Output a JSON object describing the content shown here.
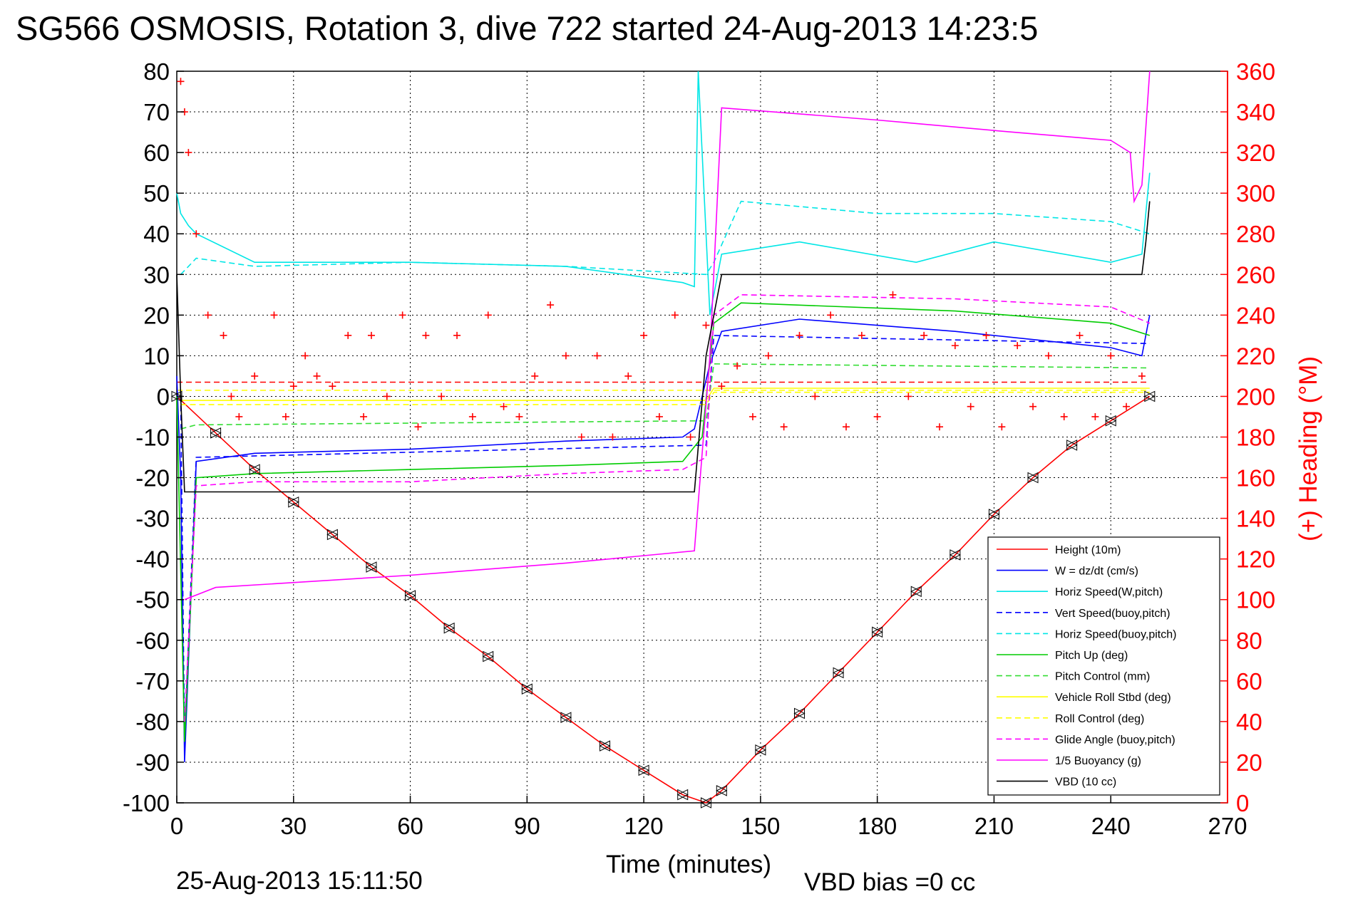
{
  "chart_data": {
    "type": "line",
    "title": "SG566 OSMOSIS, Rotation 3, dive 722 started 24-Aug-2013 14:23:5",
    "xlabel": "Time (minutes)",
    "ylabel_right": "(+) Heading (°M)",
    "footer_date": "25-Aug-2013 15:11:50",
    "footer_bias": "VBD bias =0 cc",
    "xlim": [
      0,
      270
    ],
    "ylim": [
      -100,
      80
    ],
    "ylim_right": [
      0,
      360
    ],
    "x_ticks": [
      "0",
      "30",
      "60",
      "90",
      "120",
      "150",
      "180",
      "210",
      "240",
      "270"
    ],
    "y_ticks": [
      "80",
      "70",
      "60",
      "50",
      "40",
      "30",
      "20",
      "10",
      "0",
      "-10",
      "-20",
      "-30",
      "-40",
      "-50",
      "-60",
      "-70",
      "-80",
      "-90",
      "-100"
    ],
    "y_ticks_right": [
      "360",
      "340",
      "320",
      "300",
      "280",
      "260",
      "240",
      "220",
      "200",
      "180",
      "160",
      "140",
      "120",
      "100",
      "80",
      "60",
      "40",
      "20",
      "0"
    ],
    "grid": true,
    "legend_position": "bottom-right",
    "series": [
      {
        "name": "Height (10m)",
        "color": "#ff0000",
        "style": "solid",
        "x": [
          0,
          10,
          20,
          30,
          40,
          50,
          60,
          70,
          80,
          90,
          100,
          110,
          120,
          130,
          136,
          140,
          150,
          160,
          170,
          180,
          190,
          200,
          210,
          220,
          230,
          240,
          250
        ],
        "y": [
          0,
          -9,
          -18,
          -26,
          -34,
          -42,
          -49,
          -57,
          -64,
          -72,
          -79,
          -86,
          -92,
          -98,
          -100,
          -97,
          -87,
          -78,
          -68,
          -58,
          -48,
          -39,
          -29,
          -20,
          -12,
          -6,
          0
        ]
      },
      {
        "name": "W = dz/dt (cm/s)",
        "color": "#0000ff",
        "style": "solid",
        "x": [
          0,
          1,
          2,
          5,
          20,
          60,
          100,
          130,
          133,
          137,
          140,
          160,
          200,
          240,
          248,
          250
        ],
        "y": [
          5,
          -20,
          -90,
          -16,
          -14,
          -13,
          -11,
          -10,
          -8,
          8,
          16,
          19,
          16,
          12,
          10,
          20
        ]
      },
      {
        "name": "Horiz Speed(W,pitch)",
        "color": "#00e6e6",
        "style": "solid",
        "x": [
          0,
          1,
          3,
          5,
          20,
          60,
          100,
          130,
          133,
          134,
          137,
          140,
          160,
          190,
          210,
          240,
          248,
          250
        ],
        "y": [
          50,
          45,
          42,
          40,
          33,
          33,
          32,
          28,
          27,
          80,
          20,
          35,
          38,
          33,
          38,
          33,
          35,
          55
        ]
      },
      {
        "name": "Vert Speed(buoy,pitch)",
        "color": "#0000ff",
        "style": "dashed",
        "x": [
          1,
          2,
          3,
          5,
          136,
          138,
          250
        ],
        "y": [
          0,
          -85,
          -60,
          -15,
          -12,
          15,
          13
        ]
      },
      {
        "name": "Horiz Speed(buoy,pitch)",
        "color": "#00e6e6",
        "style": "dashed",
        "x": [
          1,
          5,
          20,
          60,
          100,
          136,
          138,
          145,
          180,
          210,
          240,
          250
        ],
        "y": [
          30,
          34,
          32,
          33,
          32,
          30,
          33,
          48,
          45,
          45,
          43,
          40
        ]
      },
      {
        "name": "Pitch Up (deg)",
        "color": "#00cc00",
        "style": "solid",
        "x": [
          0,
          2,
          5,
          20,
          60,
          100,
          130,
          135,
          138,
          145,
          200,
          240,
          250
        ],
        "y": [
          0,
          -85,
          -20,
          -19,
          -18,
          -17,
          -16,
          -10,
          18,
          23,
          21,
          18,
          15
        ]
      },
      {
        "name": "Pitch Control (mm)",
        "color": "#33dd33",
        "style": "dashed",
        "x": [
          1,
          5,
          136,
          138,
          250
        ],
        "y": [
          -8,
          -7,
          -6,
          8,
          7
        ]
      },
      {
        "name": "Vehicle Roll Stbd (deg)",
        "color": "#ffff00",
        "style": "solid",
        "x": [
          1,
          10,
          60,
          120,
          136,
          138,
          200,
          250
        ],
        "y": [
          -1,
          -1,
          -1,
          -1,
          -1,
          2,
          2,
          2
        ]
      },
      {
        "name": "Roll Control (deg)",
        "color": "#ffff00",
        "style": "dashed",
        "x": [
          1,
          10,
          60,
          120,
          136,
          138,
          200,
          250
        ],
        "y": [
          -2,
          -2,
          -2,
          -2,
          -2,
          1,
          1,
          1
        ]
      },
      {
        "name": "Glide Angle (buoy,pitch)",
        "color": "#ff00ff",
        "style": "dashed",
        "x": [
          2,
          5,
          20,
          60,
          100,
          130,
          136,
          138,
          145,
          200,
          240,
          250
        ],
        "y": [
          -80,
          -22,
          -21,
          -21,
          -19,
          -18,
          -15,
          20,
          25,
          24,
          22,
          18
        ]
      },
      {
        "name": "1/5 Buoyancy (g)",
        "color": "#ff00ff",
        "style": "solid",
        "x": [
          2,
          10,
          60,
          100,
          133,
          137,
          140,
          180,
          215,
          240,
          245,
          246,
          248,
          250
        ],
        "y": [
          -50,
          -47,
          -44,
          -41,
          -38,
          10,
          71,
          68,
          65,
          63,
          60,
          48,
          52,
          80
        ]
      },
      {
        "name": "VBD (10 cc)",
        "color": "#000000",
        "style": "solid",
        "x": [
          0,
          1,
          2,
          20,
          60,
          100,
          133,
          136,
          140,
          180,
          248,
          249,
          250
        ],
        "y": [
          30,
          0,
          -23.5,
          -23.5,
          -23.5,
          -23.5,
          -23.5,
          10,
          30,
          30,
          30,
          38,
          48
        ]
      }
    ],
    "heading_points": {
      "name": "(+) Heading",
      "axis": "right",
      "color": "#ff0000",
      "marker": "+",
      "x": [
        1,
        2,
        3,
        5,
        8,
        12,
        14,
        16,
        20,
        25,
        28,
        30,
        33,
        36,
        40,
        44,
        48,
        50,
        54,
        58,
        62,
        64,
        68,
        72,
        76,
        80,
        84,
        88,
        92,
        96,
        100,
        104,
        108,
        112,
        116,
        120,
        124,
        128,
        132,
        136,
        140,
        144,
        148,
        152,
        156,
        160,
        164,
        168,
        172,
        176,
        180,
        184,
        188,
        192,
        196,
        200,
        204,
        208,
        212,
        216,
        220,
        224,
        228,
        232,
        236,
        240,
        244,
        248
      ],
      "y": [
        355,
        340,
        320,
        280,
        240,
        230,
        200,
        190,
        210,
        240,
        190,
        205,
        220,
        210,
        205,
        230,
        190,
        230,
        200,
        240,
        185,
        230,
        200,
        230,
        190,
        240,
        195,
        190,
        210,
        245,
        220,
        180,
        220,
        180,
        210,
        230,
        190,
        240,
        180,
        235,
        205,
        215,
        190,
        220,
        185,
        230,
        200,
        240,
        185,
        230,
        190,
        250,
        200,
        230,
        185,
        225,
        195,
        230,
        185,
        225,
        195,
        220,
        190,
        230,
        190,
        220,
        195,
        210
      ]
    },
    "reference_lines": [
      {
        "axis": "right",
        "value": 207,
        "color": "#ff0000",
        "style": "dashed"
      },
      {
        "axis": "right",
        "value": 203,
        "color": "#ffff00",
        "style": "dashed"
      }
    ]
  }
}
